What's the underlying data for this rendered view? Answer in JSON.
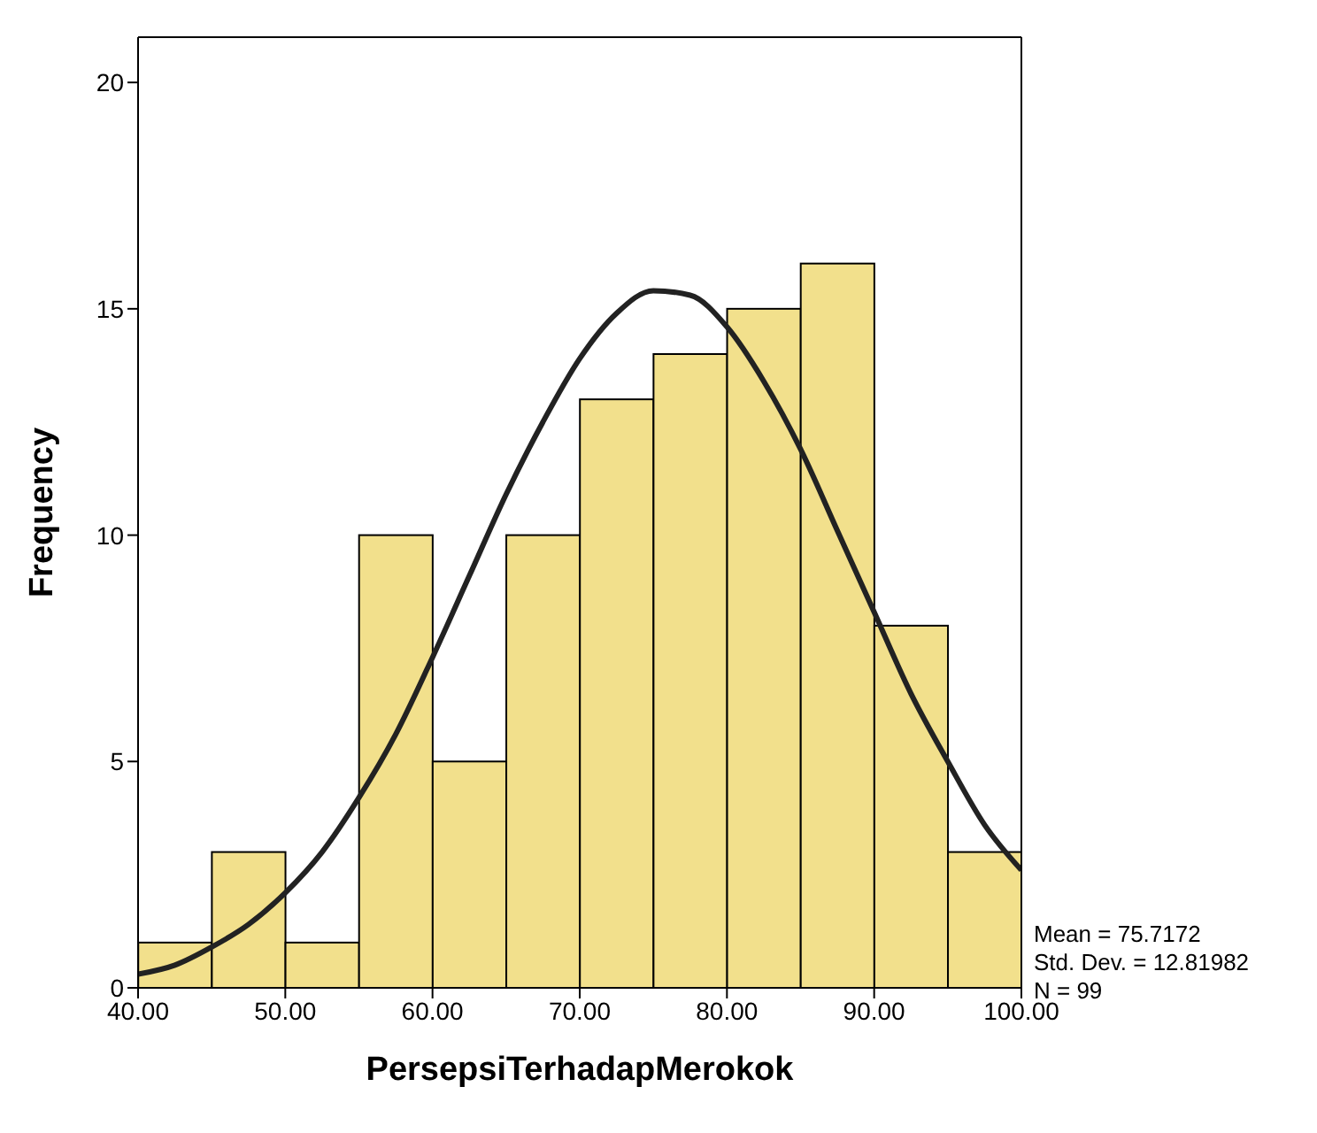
{
  "chart_data": {
    "type": "histogram",
    "xlabel": "PersepsiTerhadapMerokok",
    "ylabel": "Frequency",
    "bins": [
      40,
      45,
      50,
      55,
      60,
      65,
      70,
      75,
      80,
      85,
      90,
      95,
      100
    ],
    "values": [
      1,
      3,
      1,
      10,
      5,
      10,
      13,
      14,
      15,
      16,
      8,
      3
    ],
    "color": "#f2e08c",
    "series": [
      {
        "type": "line",
        "color": "#222222",
        "x": [
          40,
          42.5,
          45,
          47.5,
          50,
          52.5,
          55,
          57.5,
          60,
          62.5,
          65,
          67.5,
          70,
          72.5,
          75,
          77.5,
          80,
          82.5,
          85,
          87.5,
          90,
          92.5,
          95,
          97.5,
          100
        ],
        "values": [
          0.3,
          0.5,
          0.9,
          1.4,
          2.1,
          3.0,
          4.2,
          5.6,
          7.3,
          9.1,
          10.9,
          12.5,
          13.9,
          14.9,
          15.4,
          15.3,
          14.6,
          13.4,
          11.9,
          10.1,
          8.3,
          6.5,
          5.0,
          3.6,
          2.6
        ]
      }
    ],
    "xlim": [
      40,
      100
    ],
    "xticks": [
      {
        "value": 40,
        "label": "40.00"
      },
      {
        "value": 50,
        "label": "50.00"
      },
      {
        "value": 60,
        "label": "60.00"
      },
      {
        "value": 70,
        "label": "70.00"
      },
      {
        "value": 80,
        "label": "80.00"
      },
      {
        "value": 90,
        "label": "90.00"
      },
      {
        "value": 100,
        "label": "100.00"
      }
    ],
    "ylim": [
      0,
      21
    ],
    "yticks": [
      0,
      5,
      10,
      15,
      20
    ],
    "grid": false,
    "annotations": [
      "Mean = 75.7172",
      "Std. Dev. = 12.81982",
      "N = 99"
    ]
  }
}
